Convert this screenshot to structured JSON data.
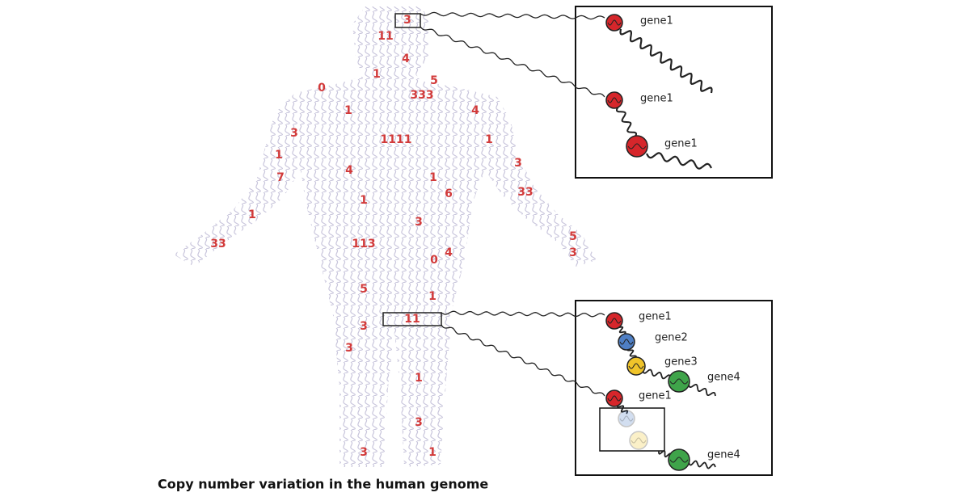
{
  "numbers": [
    "3",
    "11",
    "4",
    "1",
    "5",
    "0",
    "333",
    "1",
    "4",
    "3",
    "1111",
    "1",
    "1",
    "3",
    "4",
    "7",
    "1",
    "6",
    "33",
    "1",
    "1",
    "3",
    "5",
    "33",
    "113",
    "4",
    "3",
    "0",
    "5",
    "1",
    "11",
    "3",
    "3",
    "1",
    "3",
    "3",
    "1"
  ],
  "top_box": {
    "genes": [
      "gene1",
      "gene1",
      "gene1"
    ]
  },
  "bottom_box": {
    "genes": [
      "gene1",
      "gene2",
      "gene3",
      "gene4",
      "gene1",
      "gene4"
    ]
  },
  "caption": "Copy number variation in the human genome"
}
